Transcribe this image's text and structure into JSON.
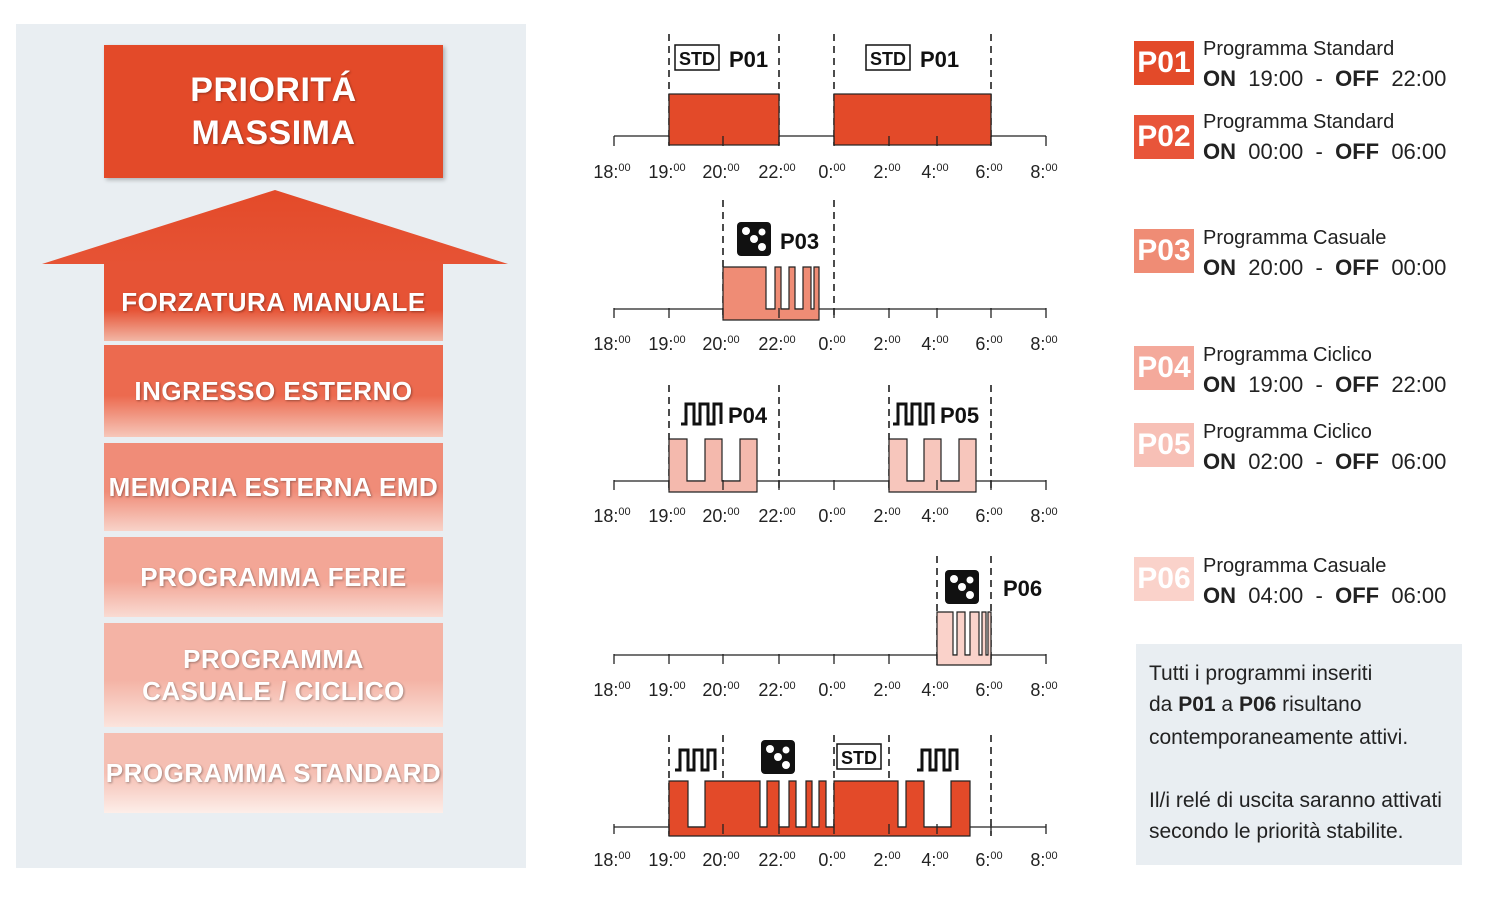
{
  "colors": {
    "p01": "#e34a29",
    "p02": "#e8553a",
    "p03": "#ef8c75",
    "p04": "#f4a99b",
    "p05": "#f7c0b6",
    "p06": "#fad2ca",
    "combined": "#e34a29",
    "panel_bg": "#e9eef2"
  },
  "priority": {
    "top": "PRIORITÁ MASSIMA",
    "levels": [
      "FORZATURA MANUALE",
      "INGRESSO ESTERNO",
      "MEMORIA ESTERNA EMD"
    ],
    "ferie": "PROGRAMMA FERIE",
    "casuale_line1": "PROGRAMMA",
    "casuale_line2": "CASUALE / CICLICO",
    "standard": "PROGRAMMA STANDARD"
  },
  "axis": {
    "ticks": [
      {
        "h": "18",
        "m": "00"
      },
      {
        "h": "19",
        "m": "00"
      },
      {
        "h": "20",
        "m": "00"
      },
      {
        "h": "22",
        "m": "00"
      },
      {
        "h": "0",
        "m": "00"
      },
      {
        "h": "2",
        "m": "00"
      },
      {
        "h": "4",
        "m": "00"
      },
      {
        "h": "6",
        "m": "00"
      },
      {
        "h": "8",
        "m": "00"
      }
    ]
  },
  "chart_labels": {
    "std": "STD",
    "p01": "P01",
    "p03": "P03",
    "p04": "P04",
    "p05": "P05",
    "p06": "P06"
  },
  "legend": [
    {
      "code": "P01",
      "name": "Programma Standard",
      "on_label": "ON",
      "on": "19:00",
      "off_label": "OFF",
      "off": "22:00"
    },
    {
      "code": "P02",
      "name": "Programma Standard",
      "on_label": "ON",
      "on": "00:00",
      "off_label": "OFF",
      "off": "06:00"
    },
    {
      "code": "P03",
      "name": "Programma Casuale",
      "on_label": "ON",
      "on": "20:00",
      "off_label": "OFF",
      "off": "00:00"
    },
    {
      "code": "P04",
      "name": "Programma Ciclico",
      "on_label": "ON",
      "on": "19:00",
      "off_label": "OFF",
      "off": "22:00"
    },
    {
      "code": "P05",
      "name": "Programma Ciclico",
      "on_label": "ON",
      "on": "02:00",
      "off_label": "OFF",
      "off": "06:00"
    },
    {
      "code": "P06",
      "name": "Programma Casuale",
      "on_label": "ON",
      "on": "04:00",
      "off_label": "OFF",
      "off": "06:00"
    }
  ],
  "note": {
    "line1": "Tutti i programmi inseriti",
    "line2_pre": "da ",
    "line2_b1": "P01",
    "line2_mid": " a ",
    "line2_b2": "P06",
    "line2_post": " risultano",
    "line3": "contemporaneamente attivi.",
    "line4": "Il/i relé di uscita saranno attivati",
    "line5": "secondo le priorità stabilite."
  }
}
